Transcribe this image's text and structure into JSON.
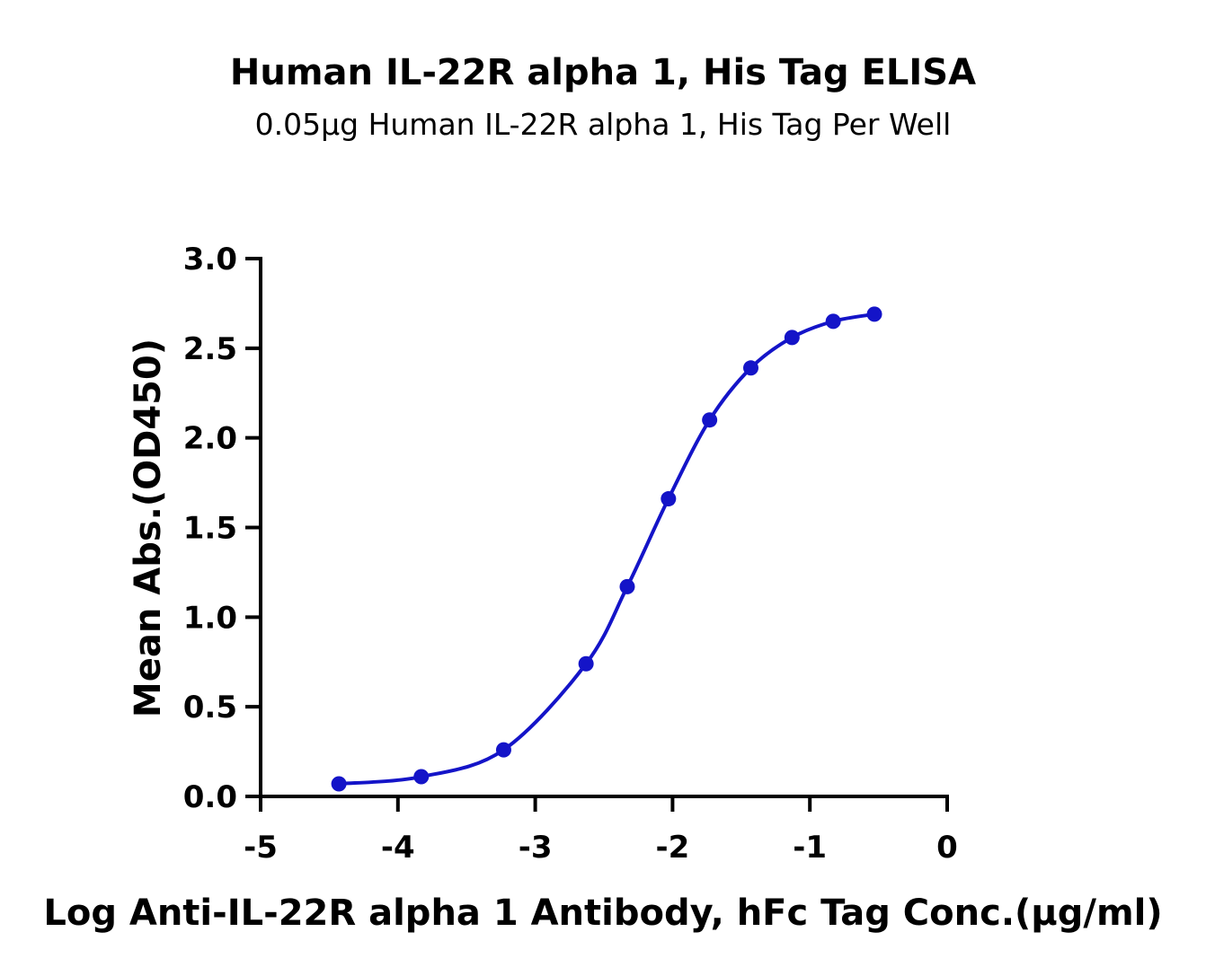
{
  "chart_data": {
    "type": "scatter",
    "title": "Human IL-22R alpha 1, His Tag ELISA",
    "subtitle": "0.05μg Human IL-22R alpha 1, His Tag Per Well",
    "xlabel": "Log Anti-IL-22R alpha 1 Antibody, hFc Tag Conc.(μg/ml)",
    "ylabel": "Mean Abs.(OD450)",
    "xlim": [
      -5,
      0
    ],
    "ylim": [
      0,
      3.0
    ],
    "x_ticks": [
      "-5",
      "-4",
      "-3",
      "-2",
      "-1",
      "0"
    ],
    "y_ticks": [
      "0.0",
      "0.5",
      "1.0",
      "1.5",
      "2.0",
      "2.5",
      "3.0"
    ],
    "grid": false,
    "series": [
      {
        "color": "#1414c8",
        "fit": "sigmoidal",
        "x": [
          -4.43,
          -3.83,
          -3.23,
          -2.63,
          -2.33,
          -2.03,
          -1.73,
          -1.43,
          -1.13,
          -0.83,
          -0.53
        ],
        "y": [
          0.07,
          0.11,
          0.26,
          0.74,
          1.17,
          1.66,
          2.1,
          2.39,
          2.56,
          2.65,
          2.69
        ]
      }
    ]
  }
}
